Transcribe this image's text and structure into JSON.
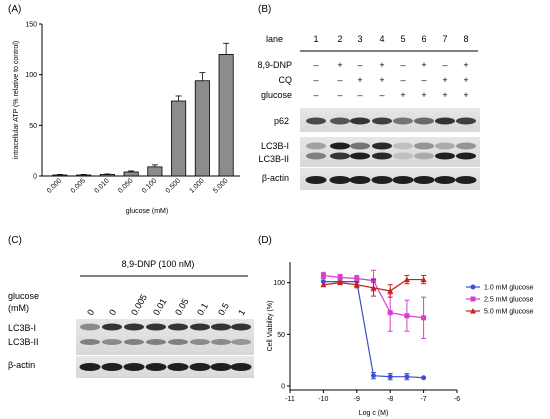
{
  "figure": {
    "panels": {
      "A": {
        "label": "(A)",
        "chart_data": {
          "type": "bar",
          "ylabel": "intracellular ATP (% relative to control)",
          "xlabel": "glucose (mM)",
          "categories": [
            "0.000",
            "0.005",
            "0.010",
            "0.050",
            "0.100",
            "0.500",
            "1.000",
            "5.000"
          ],
          "values": [
            1,
            1,
            1.5,
            4,
            9,
            74,
            94,
            120
          ],
          "errors": [
            0.5,
            0.5,
            0.5,
            1,
            2,
            5,
            8,
            11
          ],
          "ylim": [
            0,
            150
          ],
          "yticks": [
            0,
            50,
            100,
            150
          ],
          "bar_color": "#8c8c8c"
        }
      },
      "B": {
        "label": "(B)",
        "lane_header": "lane",
        "lanes": [
          "1",
          "2",
          "3",
          "4",
          "5",
          "6",
          "7",
          "8"
        ],
        "conditions": [
          {
            "name": "8,9-DNP",
            "marks": [
              "–",
              "+",
              "–",
              "+",
              "–",
              "+",
              "–",
              "+"
            ]
          },
          {
            "name": "CQ",
            "marks": [
              "–",
              "–",
              "+",
              "+",
              "–",
              "–",
              "+",
              "+"
            ]
          },
          {
            "name": "glucose",
            "marks": [
              "–",
              "–",
              "–",
              "–",
              "+",
              "+",
              "+",
              "+"
            ]
          }
        ],
        "blots": [
          "p62",
          "LC3B-I",
          "LC3B-II",
          "β-actin"
        ]
      },
      "C": {
        "label": "(C)",
        "treatment": "8,9-DNP (100 nM)",
        "glucose_header": [
          "glucose",
          "(mM)"
        ],
        "glucose_values": [
          "0",
          "0",
          "0.005",
          "0.01",
          "0.05",
          "0.1",
          "0.5",
          "1"
        ],
        "blots": [
          "LC3B-I",
          "LC3B-II",
          "β-actin"
        ]
      },
      "D": {
        "label": "(D)",
        "chart_data": {
          "type": "line",
          "ylabel": "Cell Viability (%)",
          "xlabel": "Log c (M)",
          "xlim": [
            -11,
            -6
          ],
          "xticks": [
            -11,
            -10,
            -9,
            -8,
            -7,
            -6
          ],
          "ylim": [
            0,
            120
          ],
          "yticks": [
            0,
            50,
            100
          ],
          "x": [
            -10,
            -9.5,
            -9,
            -8.5,
            -8,
            -7.5,
            -7
          ],
          "series": [
            {
              "name": "1.0 mM glucose",
              "color": "#3b4fd8",
              "marker": "circle",
              "values": [
                101,
                101,
                101,
                10,
                9,
                9,
                8
              ],
              "errors": [
                2,
                2,
                2,
                3,
                3,
                3,
                2
              ]
            },
            {
              "name": "2.5 mM glucose",
              "color": "#d43fd0",
              "marker": "square",
              "values": [
                107,
                105,
                104,
                102,
                71,
                68,
                66
              ],
              "errors": [
                3,
                3,
                3,
                10,
                18,
                15,
                20
              ]
            },
            {
              "name": "5.0 mM glucose",
              "color": "#c8201c",
              "marker": "triangle",
              "values": [
                98,
                100,
                98,
                95,
                92,
                103,
                103
              ],
              "errors": [
                2,
                2,
                3,
                8,
                6,
                4,
                4
              ]
            }
          ]
        }
      }
    }
  }
}
